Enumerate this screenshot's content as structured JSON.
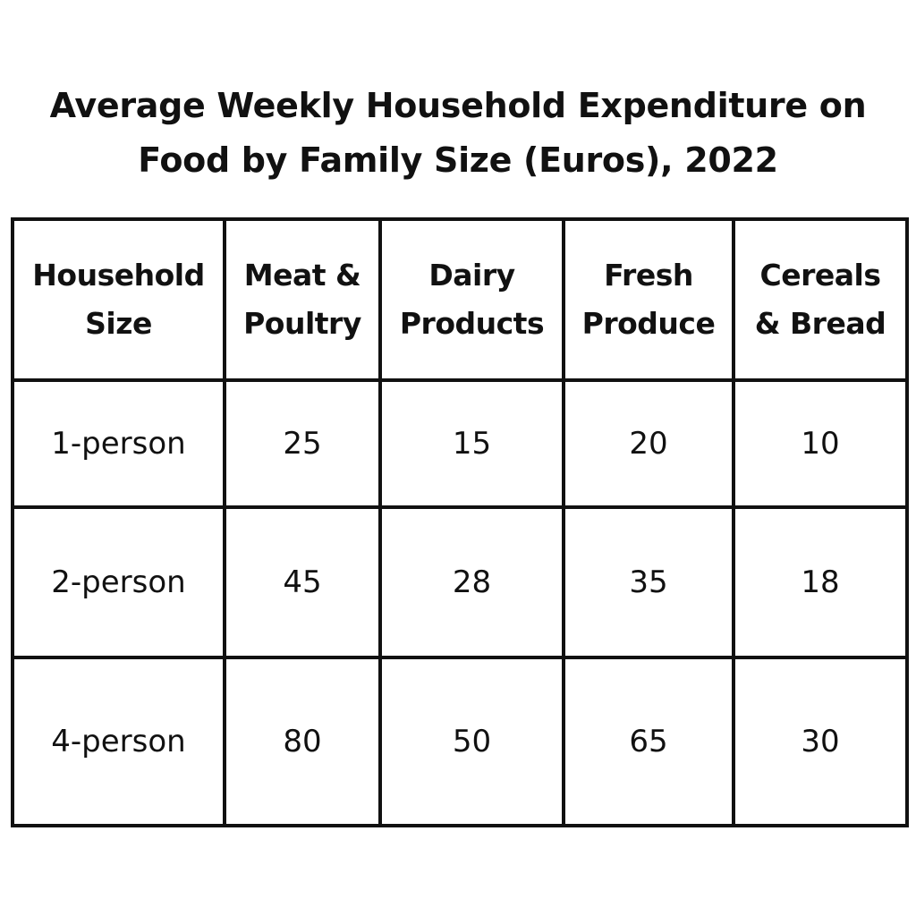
{
  "chart_data": {
    "type": "table",
    "title": "Average Weekly Household Expenditure on Food by Family Size (Euros), 2022",
    "title_lines": [
      "Average Weekly Household Expenditure on",
      "Food by Family Size (Euros), 2022"
    ],
    "columns": [
      {
        "label": "Household Size",
        "lines": [
          "Household",
          "Size"
        ]
      },
      {
        "label": "Meat & Poultry",
        "lines": [
          "Meat &",
          "Poultry"
        ]
      },
      {
        "label": "Dairy Products",
        "lines": [
          "Dairy",
          "Products"
        ]
      },
      {
        "label": "Fresh Produce",
        "lines": [
          "Fresh",
          "Produce"
        ]
      },
      {
        "label": "Cereals & Bread",
        "lines": [
          "Cereals",
          "& Bread"
        ]
      }
    ],
    "rows": [
      [
        "1-person",
        "25",
        "15",
        "20",
        "10"
      ],
      [
        "2-person",
        "45",
        "28",
        "35",
        "18"
      ],
      [
        "4-person",
        "80",
        "50",
        "65",
        "30"
      ]
    ]
  }
}
